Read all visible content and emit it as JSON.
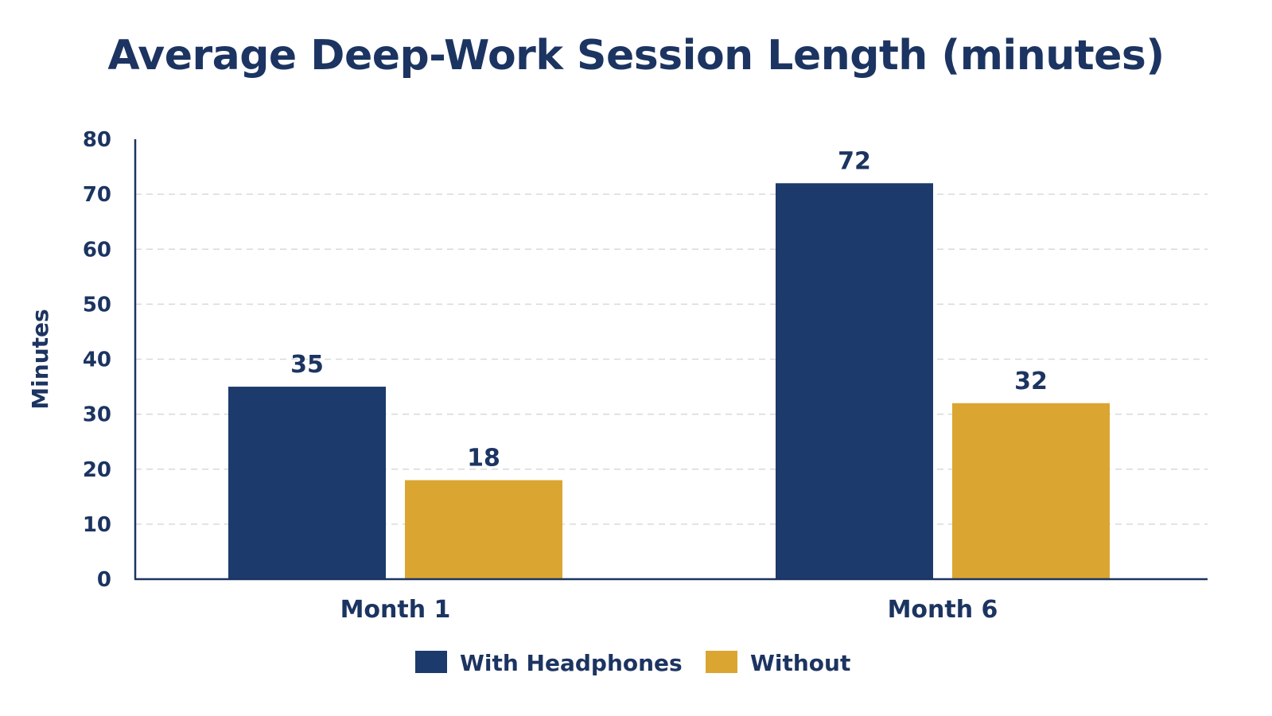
{
  "chart_data": {
    "type": "bar",
    "title": "Average Deep-Work Session Length (minutes)",
    "xlabel": "",
    "ylabel": "Minutes",
    "ylim": [
      0,
      80
    ],
    "yticks": [
      0,
      10,
      20,
      30,
      40,
      50,
      60,
      70,
      80
    ],
    "categories": [
      "Month 1",
      "Month 6"
    ],
    "series": [
      {
        "name": "With Headphones",
        "color": "#1c3a6b",
        "values": [
          35,
          72
        ]
      },
      {
        "name": "Without",
        "color": "#daa631",
        "values": [
          18,
          32
        ]
      }
    ],
    "grid": true,
    "legend_position": "bottom-center"
  }
}
